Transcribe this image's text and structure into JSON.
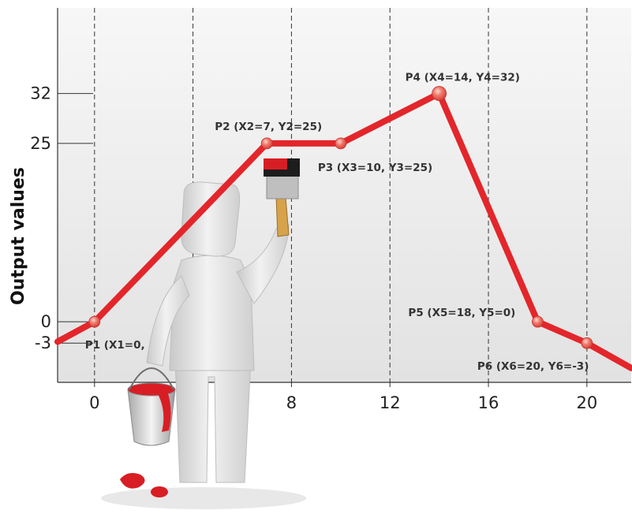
{
  "chart_data": {
    "type": "line",
    "title": "",
    "xlabel": "",
    "ylabel": "Output values",
    "xlim": [
      -1.5,
      21.8
    ],
    "ylim": [
      -8.5,
      44
    ],
    "x_ticks": [
      0,
      8,
      12,
      16,
      20
    ],
    "x_tick_labels": [
      "0",
      "8",
      "12",
      "16",
      "20"
    ],
    "y_ticks": [
      32,
      25,
      0,
      -3
    ],
    "y_tick_labels": [
      "32",
      "25",
      "0",
      "-3"
    ],
    "x_gridlines": [
      0,
      4,
      8,
      12,
      16,
      20
    ],
    "grid": true,
    "series": [
      {
        "color": "#e3262b",
        "line_x": [
          -1.5,
          0,
          7,
          10,
          14,
          18,
          20,
          21.8
        ],
        "line_y": [
          -2.8,
          0,
          25,
          25,
          32,
          0,
          -3,
          -6.5
        ],
        "points_x": [
          0,
          7,
          10,
          14,
          18,
          20
        ],
        "points_y": [
          0,
          25,
          25,
          32,
          0,
          -3
        ]
      }
    ],
    "annotations": [
      {
        "text": "P1 (X1=0,",
        "x": 0,
        "y": 0
      },
      {
        "text": "P2 (X2=7, Y2=25)",
        "x": 7,
        "y": 25
      },
      {
        "text": "P3 (X3=10, Y3=25)",
        "x": 10,
        "y": 25
      },
      {
        "text": "P4 (X4=14, Y4=32)",
        "x": 14,
        "y": 32
      },
      {
        "text": "P5 (X5=18, Y5=0)",
        "x": 18,
        "y": 0
      },
      {
        "text": "P6 (X6=20, Y6=-3)",
        "x": 20,
        "y": -3
      }
    ]
  },
  "illustration": {
    "figure_icon": "painter-figure-icon",
    "paintbrush_icon": "paintbrush-icon",
    "bucket_icon": "paint-bucket-icon",
    "paint_color": "#d81e24",
    "figure_color": "#e6e6e6"
  }
}
